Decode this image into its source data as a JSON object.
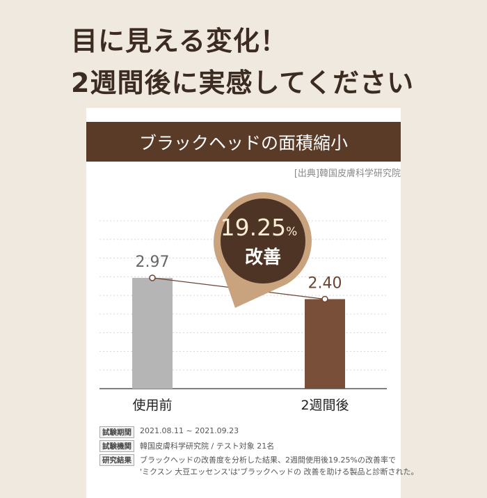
{
  "headline": {
    "line1": "目に見える変化！",
    "line2": "2週間後に実感してください"
  },
  "card": {
    "header": "ブラックヘッドの面積縮小",
    "source": "[出典]韓国皮膚科学研究院"
  },
  "badge": {
    "value": "19.25",
    "unit": "%",
    "label": "改善"
  },
  "colors": {
    "header_bg": "#5a3b28",
    "before_bar": "#b5b5b5",
    "after_bar": "#7a4f3a",
    "badge_ring": "#c9a27e",
    "badge_fill": "#4e3424"
  },
  "chart_data": {
    "type": "bar",
    "categories": [
      "使用前",
      "2週間後"
    ],
    "values": [
      2.97,
      2.4
    ],
    "data_labels": [
      "2.97",
      "2.40"
    ],
    "ylim": [
      0,
      4.5
    ],
    "grid": true,
    "connector_line": true
  },
  "meta": [
    {
      "tag": "試験期間",
      "text": "2021.08.11 ~ 2021.09.23"
    },
    {
      "tag": "試験機関",
      "text": "韓国皮膚科学研究院 / テスト対象 21名"
    },
    {
      "tag": "研究結果",
      "text": "ブラックヘッドの改善度を分析した結果、2週間使用後19.25%の改善率で",
      "text2": "'ミクスン 大豆エッセンス'は'ブラックヘッドの 改善を助ける製品と診断された。"
    }
  ]
}
